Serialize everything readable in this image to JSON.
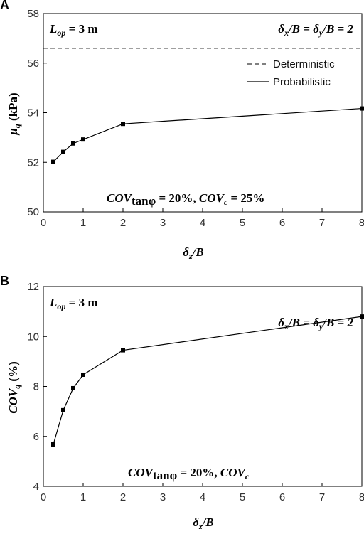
{
  "chart_data": [
    {
      "type": "line",
      "panel": "A",
      "annotation_left": "L_op = 3 m",
      "annotation_right": "δx/B = δy/B = 2",
      "annotation_bottom": "COVtanφ = 20%, COVc = 25%",
      "ylabel": "μq (kPa)",
      "xlabel": "δz/B",
      "x_ticks": [
        0,
        1,
        2,
        3,
        4,
        5,
        6,
        7,
        8
      ],
      "y_ticks": [
        50,
        52,
        54,
        56,
        58
      ],
      "xlim": [
        0,
        8
      ],
      "ylim": [
        50,
        58
      ],
      "legend_position": "upper-right",
      "series": [
        {
          "name": "Deterministic",
          "style": "dashed",
          "x": [
            0,
            8
          ],
          "values": [
            56.6,
            56.6
          ]
        },
        {
          "name": "Probabilistic",
          "style": "solid-with-square-markers",
          "x": [
            0.25,
            0.5,
            0.75,
            1,
            2,
            8
          ],
          "values": [
            52.02,
            52.42,
            52.76,
            52.92,
            53.55,
            54.17
          ]
        }
      ]
    },
    {
      "type": "line",
      "panel": "B",
      "annotation_left": "L_op = 3 m",
      "annotation_right": "δx/B = δy/B = 2",
      "annotation_bottom": "COVtanφ = 20%, COVc",
      "ylabel": "COVq (%)",
      "xlabel": "δz/B",
      "x_ticks": [
        0,
        1,
        2,
        3,
        4,
        5,
        6,
        7,
        8
      ],
      "y_ticks": [
        4,
        6,
        8,
        10,
        12
      ],
      "xlim": [
        0,
        8
      ],
      "ylim": [
        4,
        12
      ],
      "series": [
        {
          "style": "solid-with-square-markers",
          "x": [
            0.25,
            0.5,
            0.75,
            1,
            2,
            8
          ],
          "values": [
            5.68,
            7.05,
            7.93,
            8.47,
            9.45,
            10.8
          ]
        }
      ]
    }
  ],
  "panels": {
    "a": {
      "letter": "A",
      "lop_L": "L",
      "lop_sub": "op",
      "lop_rest": " = 3 m",
      "delta_1": "δ",
      "delta_1_sub": "x",
      "delta_1_rest": "/B = ",
      "delta_2": "δ",
      "delta_2_sub": "y",
      "delta_2_rest": "/B = 2",
      "legend_det": "Deterministic",
      "legend_prob": "Probabilistic",
      "cov_main": "COV",
      "cov_sub1": "tanφ",
      "cov_mid": " = 20%, ",
      "cov_main2": "COV",
      "cov_sub2": "c",
      "cov_end": " = 25%",
      "ylabel_mu": "μ",
      "ylabel_sub": "q",
      "ylabel_unit": " (kPa)",
      "xlabel_delta": "δ",
      "xlabel_sub": "z",
      "xlabel_rest": "/B"
    },
    "b": {
      "letter": "B",
      "lop_L": "L",
      "lop_sub": "op",
      "lop_rest": " = 3 m",
      "delta_1": "δ",
      "delta_1_sub": "x",
      "delta_1_rest": "/B = ",
      "delta_2": "δ",
      "delta_2_sub": "y",
      "delta_2_rest": "/B = 2",
      "cov_main": "COV",
      "cov_sub1": "tanφ",
      "cov_mid": " = 20%, ",
      "cov_main2": "COV",
      "cov_sub2": "c",
      "ylabel_cov": "COV",
      "ylabel_sub": "q",
      "ylabel_unit": " (%)",
      "xlabel_delta": "δ",
      "xlabel_sub": "z",
      "xlabel_rest": "/B"
    }
  }
}
